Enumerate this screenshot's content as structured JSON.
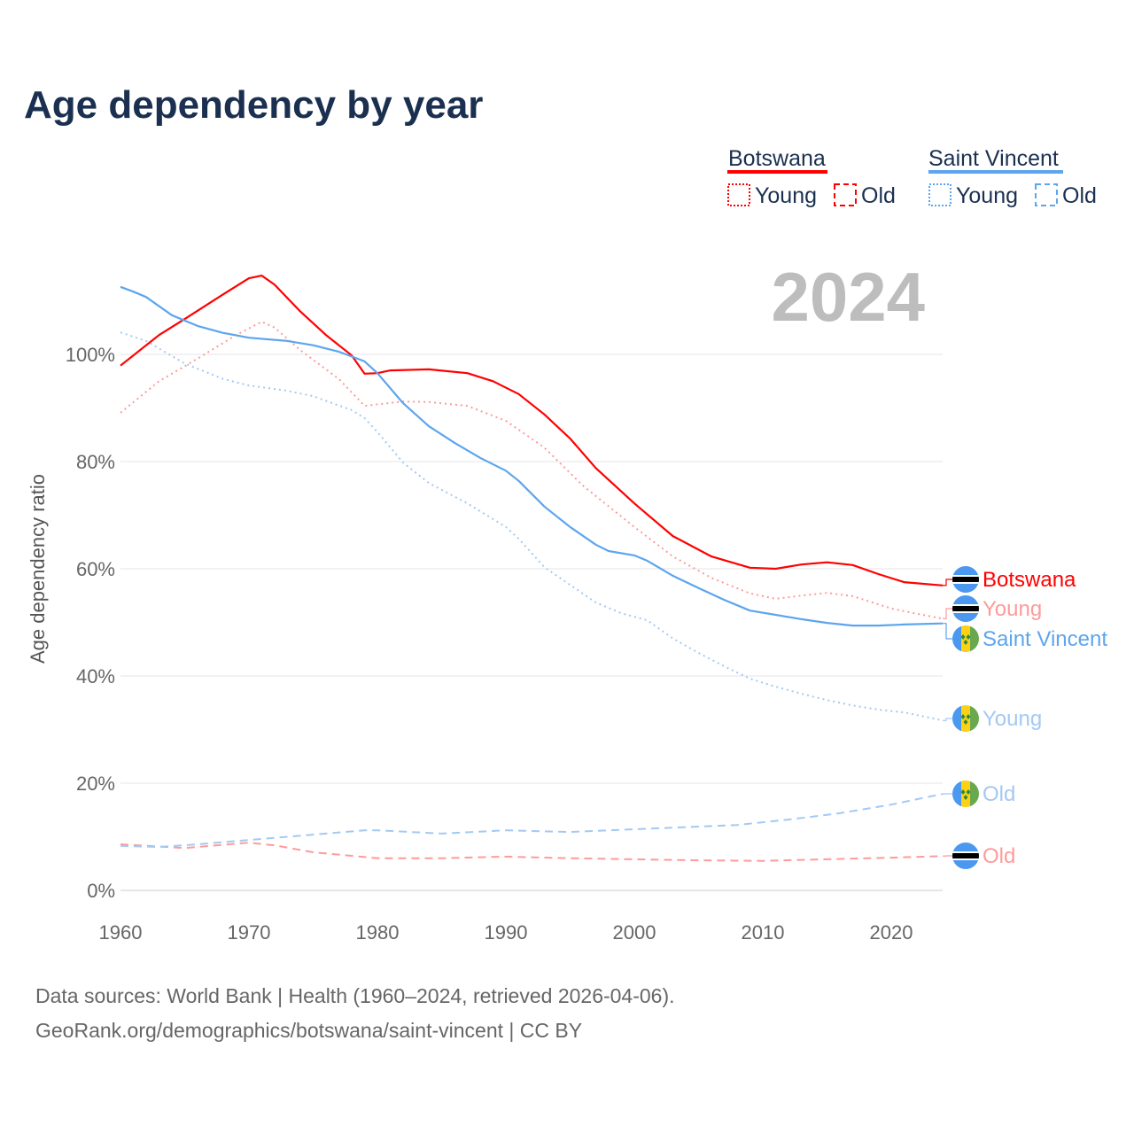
{
  "chart_data": {
    "type": "line",
    "title": "Age dependency by year",
    "ylabel": "Age dependency ratio",
    "xlabel": "",
    "xlim": [
      1960,
      2024
    ],
    "ylim": [
      0,
      120
    ],
    "x_ticks": [
      "1960",
      "1970",
      "1980",
      "1990",
      "2000",
      "2010",
      "2020"
    ],
    "y_ticks": [
      "0%",
      "20%",
      "40%",
      "60%",
      "80%",
      "100%"
    ],
    "grid": true,
    "year_label": "2024",
    "legend": {
      "placement": "top-right",
      "groups": [
        {
          "name": "Botswana",
          "color": "#ff0000",
          "items": [
            "Young",
            "Old"
          ]
        },
        {
          "name": "Saint Vincent",
          "color": "#5da5ee",
          "items": [
            "Young",
            "Old"
          ]
        }
      ]
    },
    "series": [
      {
        "id": "botswana-total",
        "name": "Botswana",
        "label": "Botswana",
        "color": "#ff0000",
        "style": "solid",
        "flag": "botswana",
        "points": [
          [
            1960,
            97.9
          ],
          [
            1963,
            103.6
          ],
          [
            1965,
            106.6
          ],
          [
            1968,
            111.2
          ],
          [
            1970,
            114.2
          ],
          [
            1971,
            114.7
          ],
          [
            1972,
            113
          ],
          [
            1974,
            108
          ],
          [
            1976,
            103.6
          ],
          [
            1978,
            99.8
          ],
          [
            1979,
            96.4
          ],
          [
            1980,
            96.5
          ],
          [
            1981,
            97
          ],
          [
            1984,
            97.2
          ],
          [
            1987,
            96.5
          ],
          [
            1989,
            95
          ],
          [
            1991,
            92.6
          ],
          [
            1993,
            88.8
          ],
          [
            1995,
            84.3
          ],
          [
            1997,
            78.8
          ],
          [
            2000,
            72.2
          ],
          [
            2003,
            66.1
          ],
          [
            2006,
            62.3
          ],
          [
            2009,
            60.2
          ],
          [
            2011,
            60
          ],
          [
            2013,
            60.8
          ],
          [
            2015,
            61.2
          ],
          [
            2017,
            60.7
          ],
          [
            2019,
            59
          ],
          [
            2021,
            57.5
          ],
          [
            2024,
            56.9
          ]
        ]
      },
      {
        "id": "botswana-young",
        "name": "Botswana Young",
        "label": "Young",
        "color": "#ff9a9a",
        "style": "dotted",
        "flag": "botswana",
        "points": [
          [
            1960,
            89.1
          ],
          [
            1963,
            95
          ],
          [
            1966,
            99.2
          ],
          [
            1969,
            103.6
          ],
          [
            1971,
            106.1
          ],
          [
            1972,
            105
          ],
          [
            1974,
            100.8
          ],
          [
            1977,
            95.4
          ],
          [
            1979,
            90.4
          ],
          [
            1982,
            91.2
          ],
          [
            1984,
            91.1
          ],
          [
            1987,
            90.4
          ],
          [
            1990,
            87.6
          ],
          [
            1993,
            82.6
          ],
          [
            1996,
            75.5
          ],
          [
            2000,
            67.8
          ],
          [
            2003,
            62.3
          ],
          [
            2006,
            58.3
          ],
          [
            2009,
            55.4
          ],
          [
            2011,
            54.4
          ],
          [
            2013,
            55
          ],
          [
            2015,
            55.5
          ],
          [
            2017,
            54.9
          ],
          [
            2020,
            52.6
          ],
          [
            2022,
            51.6
          ],
          [
            2024,
            50.7
          ]
        ]
      },
      {
        "id": "botswana-old",
        "name": "Botswana Old",
        "label": "Old",
        "color": "#ff9a9a",
        "style": "dashed",
        "flag": "botswana",
        "points": [
          [
            1960,
            8.6
          ],
          [
            1965,
            7.9
          ],
          [
            1970,
            8.9
          ],
          [
            1972,
            8.4
          ],
          [
            1975,
            7.1
          ],
          [
            1980,
            6
          ],
          [
            1985,
            6
          ],
          [
            1990,
            6.3
          ],
          [
            1995,
            6
          ],
          [
            2000,
            5.8
          ],
          [
            2005,
            5.6
          ],
          [
            2010,
            5.5
          ],
          [
            2015,
            5.8
          ],
          [
            2020,
            6.1
          ],
          [
            2024,
            6.4
          ]
        ]
      },
      {
        "id": "svg-total",
        "name": "Saint Vincent",
        "label": "Saint Vincent",
        "color": "#5da5ee",
        "style": "solid",
        "flag": "saint-vincent",
        "points": [
          [
            1960,
            112.6
          ],
          [
            1961,
            111.7
          ],
          [
            1962,
            110.7
          ],
          [
            1964,
            107.3
          ],
          [
            1966,
            105.3
          ],
          [
            1968,
            104
          ],
          [
            1970,
            103.1
          ],
          [
            1973,
            102.5
          ],
          [
            1975,
            101.7
          ],
          [
            1977,
            100.5
          ],
          [
            1979,
            98.7
          ],
          [
            1980,
            96.5
          ],
          [
            1982,
            90.9
          ],
          [
            1984,
            86.6
          ],
          [
            1986,
            83.5
          ],
          [
            1988,
            80.7
          ],
          [
            1990,
            78.3
          ],
          [
            1991,
            76.4
          ],
          [
            1993,
            71.6
          ],
          [
            1995,
            67.8
          ],
          [
            1997,
            64.5
          ],
          [
            1998,
            63.3
          ],
          [
            2000,
            62.5
          ],
          [
            2001,
            61.5
          ],
          [
            2003,
            58.7
          ],
          [
            2005,
            56.4
          ],
          [
            2007,
            54.2
          ],
          [
            2009,
            52.2
          ],
          [
            2011,
            51.4
          ],
          [
            2013,
            50.6
          ],
          [
            2015,
            49.9
          ],
          [
            2017,
            49.4
          ],
          [
            2019,
            49.4
          ],
          [
            2021,
            49.6
          ],
          [
            2024,
            49.8
          ]
        ]
      },
      {
        "id": "svg-young",
        "name": "Saint Vincent Young",
        "label": "Young",
        "color": "#a3c9f3",
        "style": "dotted",
        "flag": "saint-vincent",
        "points": [
          [
            1960,
            104.1
          ],
          [
            1962,
            102.5
          ],
          [
            1965,
            98.3
          ],
          [
            1968,
            95.4
          ],
          [
            1970,
            94.2
          ],
          [
            1973,
            93.2
          ],
          [
            1975,
            92.2
          ],
          [
            1978,
            89.6
          ],
          [
            1979,
            88.1
          ],
          [
            1980,
            85.5
          ],
          [
            1982,
            79.8
          ],
          [
            1984,
            76
          ],
          [
            1987,
            72.2
          ],
          [
            1990,
            67.8
          ],
          [
            1991,
            65.6
          ],
          [
            1993,
            60.3
          ],
          [
            1995,
            57
          ],
          [
            1997,
            53.7
          ],
          [
            1999,
            51.7
          ],
          [
            2001,
            50.4
          ],
          [
            2003,
            47
          ],
          [
            2005,
            44.3
          ],
          [
            2007,
            41.8
          ],
          [
            2009,
            39.5
          ],
          [
            2011,
            38
          ],
          [
            2013,
            36.7
          ],
          [
            2015,
            35.5
          ],
          [
            2017,
            34.5
          ],
          [
            2019,
            33.7
          ],
          [
            2021,
            33.2
          ],
          [
            2024,
            31.7
          ]
        ]
      },
      {
        "id": "svg-old",
        "name": "Saint Vincent Old",
        "label": "Old",
        "color": "#a3c9f3",
        "style": "dashed",
        "flag": "saint-vincent",
        "points": [
          [
            1960,
            8.3
          ],
          [
            1963,
            8.1
          ],
          [
            1966,
            8.6
          ],
          [
            1970,
            9.4
          ],
          [
            1975,
            10.4
          ],
          [
            1979,
            11.2
          ],
          [
            1980,
            11.2
          ],
          [
            1985,
            10.6
          ],
          [
            1990,
            11.2
          ],
          [
            1995,
            10.9
          ],
          [
            2000,
            11.4
          ],
          [
            2005,
            11.9
          ],
          [
            2008,
            12.2
          ],
          [
            2012,
            13.2
          ],
          [
            2016,
            14.4
          ],
          [
            2020,
            16
          ],
          [
            2024,
            18
          ]
        ]
      }
    ]
  },
  "footer": {
    "source": "Data sources: World Bank | Health (1960–2024, retrieved 2026-04-06).",
    "url": "GeoRank.org/demographics/botswana/saint-vincent | CC BY"
  }
}
